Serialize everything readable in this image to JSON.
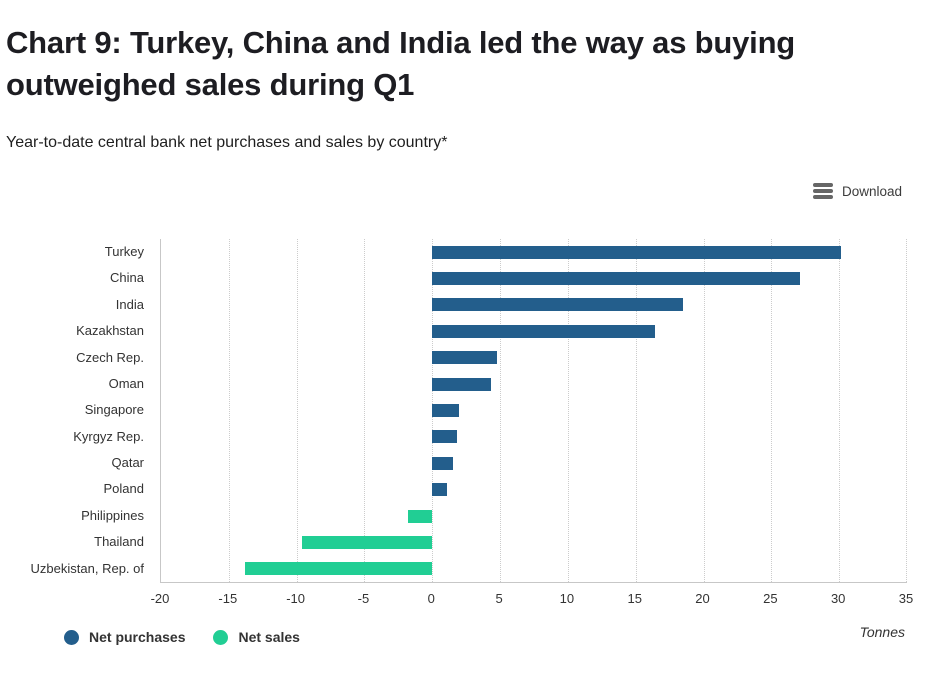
{
  "header": {
    "title_line1": "Chart 9:  Turkey, China and India led the way as buying",
    "title_line2": "outweighed sales during Q1",
    "subtitle": "Year-to-date central bank net purchases and sales by country*"
  },
  "toolbar": {
    "download_label": "Download"
  },
  "chart_data": {
    "type": "bar",
    "orientation": "horizontal",
    "title": "Year-to-date central bank net purchases and sales by country*",
    "categories": [
      "Turkey",
      "China",
      "India",
      "Kazakhstan",
      "Czech Rep.",
      "Oman",
      "Singapore",
      "Kyrgyz Rep.",
      "Qatar",
      "Poland",
      "Philippines",
      "Thailand",
      "Uzbekistan, Rep. of"
    ],
    "values": [
      30.1,
      27.1,
      18.5,
      16.4,
      4.8,
      4.3,
      2.0,
      1.8,
      1.5,
      1.1,
      -1.8,
      -9.6,
      -13.8
    ],
    "xlim": [
      -20,
      35
    ],
    "x_ticks": [
      -20,
      -15,
      -10,
      -5,
      0,
      5,
      10,
      15,
      20,
      25,
      30,
      35
    ],
    "unit_label": "Tonnes",
    "grid": "vertical-dotted",
    "legend_position": "bottom-left",
    "legend": [
      {
        "label": "Net purchases",
        "color": "#235e8c"
      },
      {
        "label": "Net sales",
        "color": "#21ce94"
      }
    ],
    "colors": {
      "positive": "#235e8c",
      "negative": "#21ce94"
    }
  }
}
